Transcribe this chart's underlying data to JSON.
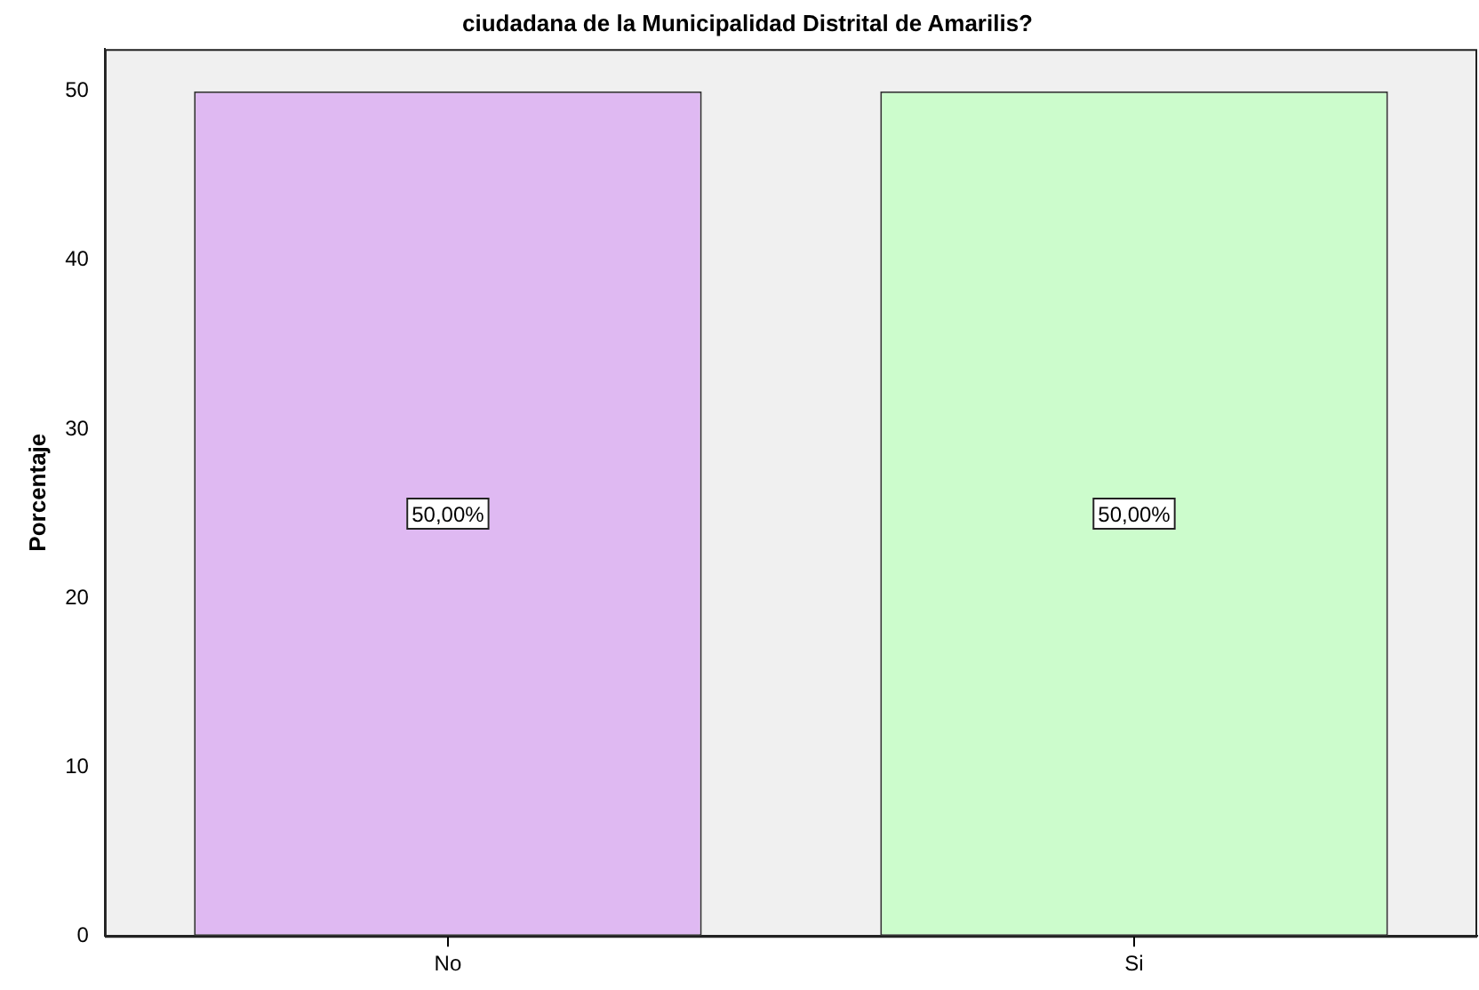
{
  "chart_data": {
    "type": "bar",
    "title": "ciudadana de la Municipalidad Distrital de Amarilis?",
    "ylabel": "Porcentaje",
    "categories": [
      "No",
      "Si"
    ],
    "values": [
      50,
      50
    ],
    "colors": [
      "#dfb9f2",
      "#ccfccc"
    ],
    "value_labels": [
      "50,00%",
      "50,00%"
    ],
    "ylim": [
      0,
      52.5
    ],
    "yticks": [
      0,
      10,
      20,
      30,
      40,
      50
    ],
    "grid": false,
    "legend": false
  }
}
